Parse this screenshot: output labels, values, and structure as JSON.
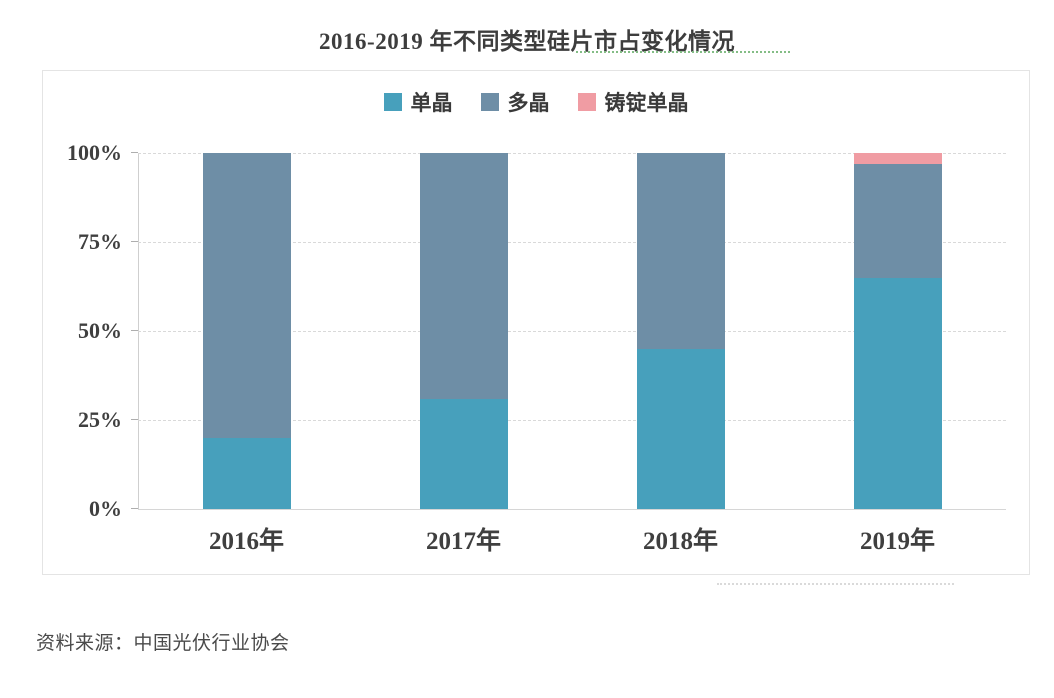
{
  "title": "2016-2019 年不同类型硅片市占变化情况",
  "source": "资料来源：中国光伏行业协会",
  "chart_data": {
    "type": "bar",
    "stacked": true,
    "title": "2016-2019 年不同类型硅片市占变化情况",
    "categories": [
      "2016年",
      "2017年",
      "2018年",
      "2019年"
    ],
    "series": [
      {
        "name": "单晶",
        "key": "mono",
        "color": "#47a0bc",
        "values": [
          20,
          31,
          45,
          65
        ]
      },
      {
        "name": "多晶",
        "key": "poly",
        "color": "#6e8ea6",
        "values": [
          80,
          69,
          55,
          32
        ]
      },
      {
        "name": "铸锭单晶",
        "key": "cast-mono",
        "color": "#f09ca3",
        "values": [
          0,
          0,
          0,
          3
        ]
      }
    ],
    "y_ticks": [
      {
        "label": "0%",
        "value": 0
      },
      {
        "label": "25%",
        "value": 25
      },
      {
        "label": "50%",
        "value": 50
      },
      {
        "label": "75%",
        "value": 75
      },
      {
        "label": "100%",
        "value": 100
      }
    ],
    "ylim": [
      0,
      100
    ],
    "unit": "%",
    "xlabel": "",
    "ylabel": "",
    "grid": "horizontal-dashed",
    "legend_position": "top-center"
  },
  "colors": {
    "grid": "#d9d9d9",
    "axis": "#cfcfcf",
    "card_border": "#e4e4e4",
    "text": "#3f3f3f",
    "spellcheck_underline": "#84bd86"
  }
}
